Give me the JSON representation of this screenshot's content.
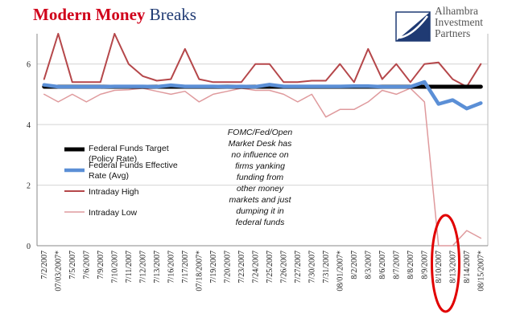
{
  "header": {
    "title_part1": "Modern Money",
    "title_part2": "Breaks",
    "logo_line1": "Alhambra",
    "logo_line2": "Investment",
    "logo_line3": "Partners"
  },
  "colors": {
    "target": "#000000",
    "effective": "#5b8fd6",
    "high": "#b5474a",
    "low": "#df9a9d",
    "highlight": "#e10000"
  },
  "annotation": [
    "FOMC/Fed/Open",
    "Market Desk has",
    "no influence on",
    "firms yanking",
    "funding from",
    "other money",
    "markets and just",
    "dumping it in",
    "federal funds"
  ],
  "chart_data": {
    "type": "line",
    "categories": [
      "7/2/2007",
      "07/03/2007*",
      "7/5/2007",
      "7/6/2007",
      "7/9/2007",
      "7/10/2007",
      "7/11/2007",
      "7/12/2007",
      "7/13/2007",
      "7/16/2007",
      "7/17/2007",
      "07/18/2007*",
      "7/19/2007",
      "7/20/2007",
      "7/23/2007",
      "7/24/2007",
      "7/25/2007",
      "7/26/2007",
      "7/27/2007",
      "7/30/2007",
      "7/31/2007",
      "08/01/2007*",
      "8/2/2007",
      "8/3/2007",
      "8/6/2007",
      "8/7/2007",
      "8/8/2007",
      "8/9/2007",
      "8/10/2007",
      "8/13/2007",
      "8/14/2007",
      "08/15/2007*"
    ],
    "ylim": [
      0,
      7
    ],
    "yticks": [
      0,
      2,
      4,
      6
    ],
    "series": [
      {
        "name": "Federal Funds Target (Policy Rate)",
        "color": "#000000",
        "values": [
          5.25,
          5.25,
          5.25,
          5.25,
          5.25,
          5.25,
          5.25,
          5.25,
          5.25,
          5.25,
          5.25,
          5.25,
          5.25,
          5.25,
          5.25,
          5.25,
          5.25,
          5.25,
          5.25,
          5.25,
          5.25,
          5.25,
          5.25,
          5.25,
          5.25,
          5.25,
          5.25,
          5.25,
          5.25,
          5.25,
          5.25,
          5.25
        ]
      },
      {
        "name": "Federal Funds Effective Rate (Avg)",
        "color": "#5b8fd6",
        "values": [
          5.31,
          5.25,
          5.25,
          5.25,
          5.25,
          5.26,
          5.26,
          5.26,
          5.25,
          5.3,
          5.26,
          5.26,
          5.26,
          5.25,
          5.26,
          5.25,
          5.32,
          5.26,
          5.26,
          5.26,
          5.26,
          5.26,
          5.27,
          5.27,
          5.25,
          5.25,
          5.25,
          5.41,
          4.68,
          4.81,
          4.53,
          4.71
        ]
      },
      {
        "name": "Intraday High",
        "color": "#b5474a",
        "values": [
          5.5,
          7.0,
          5.4,
          5.4,
          5.4,
          7.0,
          6.0,
          5.6,
          5.45,
          5.5,
          6.5,
          5.5,
          5.4,
          5.4,
          5.4,
          6.0,
          6.0,
          5.4,
          5.4,
          5.45,
          5.45,
          6.0,
          5.4,
          6.5,
          5.5,
          6.0,
          5.4,
          6.0,
          6.05,
          5.5,
          5.25,
          6.0
        ]
      },
      {
        "name": "Intraday Low",
        "color": "#df9a9d",
        "values": [
          5.0,
          4.75,
          5.0,
          4.75,
          5.0,
          5.13,
          5.15,
          5.2,
          5.1,
          5.0,
          5.1,
          4.75,
          5.0,
          5.1,
          5.2,
          5.13,
          5.13,
          5.0,
          4.75,
          5.0,
          4.25,
          4.5,
          4.5,
          4.75,
          5.13,
          5.0,
          5.2,
          4.75,
          0.0,
          0.0,
          0.5,
          0.25
        ]
      }
    ],
    "legend_position": "left-middle",
    "annotated_categories": [
      "8/10/2007",
      "8/13/2007"
    ]
  }
}
